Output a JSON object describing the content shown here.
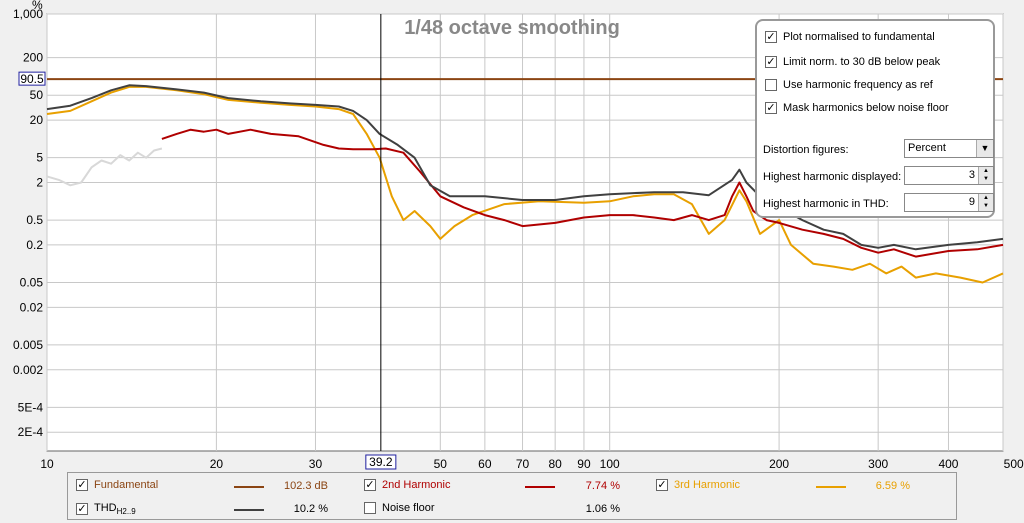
{
  "chart_data": {
    "type": "line",
    "title": "1/48 octave smoothing",
    "ylabel": "%",
    "xlabel": "Hz",
    "xscale": "log",
    "yscale": "log",
    "xlim": [
      10,
      500
    ],
    "ylim": [
      0.0001,
      1000
    ],
    "x_ticks": [
      10,
      20,
      30,
      50,
      60,
      70,
      80,
      90,
      100,
      200,
      300,
      400,
      500
    ],
    "x_tick_labels": [
      "10",
      "20",
      "30",
      "50",
      "60",
      "70",
      "80",
      "90",
      "100",
      "200",
      "300",
      "400",
      "500Hz"
    ],
    "y_ticks": [
      1000,
      200,
      50,
      20,
      5,
      2,
      0.5,
      0.2,
      0.05,
      0.02,
      0.005,
      0.002,
      0.0005,
      0.0002
    ],
    "y_tick_labels": [
      "1,000",
      "200",
      "50",
      "20",
      "5",
      "2",
      "0.5",
      "0.2",
      "0.05",
      "0.02",
      "0.005",
      "0.002",
      "5E-4",
      "2E-4"
    ],
    "cursor": {
      "x": 39.2,
      "x_label": "39.2",
      "y_label": "90.5"
    },
    "series": [
      {
        "name": "Fundamental",
        "color": "#8b4513",
        "legend_value": "102.3 dB",
        "points": [
          [
            10,
            90.5
          ],
          [
            500,
            90.5
          ]
        ]
      },
      {
        "name": "THD",
        "color": "#404040",
        "legend_value": "10.2 %",
        "points": [
          [
            10,
            30
          ],
          [
            11,
            34
          ],
          [
            12,
            45
          ],
          [
            13,
            60
          ],
          [
            14,
            72
          ],
          [
            15,
            70
          ],
          [
            17,
            62
          ],
          [
            19,
            55
          ],
          [
            21,
            45
          ],
          [
            24,
            40
          ],
          [
            27,
            37
          ],
          [
            30,
            35
          ],
          [
            33,
            33
          ],
          [
            35,
            28
          ],
          [
            37,
            20
          ],
          [
            39,
            12
          ],
          [
            42,
            8
          ],
          [
            45,
            5
          ],
          [
            48,
            1.8
          ],
          [
            52,
            1.2
          ],
          [
            60,
            1.2
          ],
          [
            70,
            1.05
          ],
          [
            80,
            1.05
          ],
          [
            90,
            1.2
          ],
          [
            100,
            1.3
          ],
          [
            120,
            1.4
          ],
          [
            135,
            1.4
          ],
          [
            150,
            1.25
          ],
          [
            165,
            2.2
          ],
          [
            170,
            3.2
          ],
          [
            175,
            2.0
          ],
          [
            185,
            1.2
          ],
          [
            200,
            0.8
          ],
          [
            220,
            0.5
          ],
          [
            240,
            0.35
          ],
          [
            260,
            0.3
          ],
          [
            280,
            0.2
          ],
          [
            300,
            0.18
          ],
          [
            320,
            0.2
          ],
          [
            350,
            0.17
          ],
          [
            400,
            0.2
          ],
          [
            450,
            0.22
          ],
          [
            500,
            0.25
          ]
        ]
      },
      {
        "name": "2nd Harmonic",
        "color": "#b00000",
        "legend_value": "7.74 %",
        "points": [
          [
            16,
            10
          ],
          [
            17,
            12
          ],
          [
            18,
            14
          ],
          [
            19,
            13
          ],
          [
            20,
            14
          ],
          [
            21,
            12
          ],
          [
            23,
            14
          ],
          [
            25,
            12
          ],
          [
            28,
            11
          ],
          [
            31,
            8
          ],
          [
            33,
            7
          ],
          [
            35,
            6.8
          ],
          [
            38,
            6.8
          ],
          [
            40,
            7
          ],
          [
            43,
            6
          ],
          [
            46,
            3
          ],
          [
            50,
            1.2
          ],
          [
            55,
            0.8
          ],
          [
            60,
            0.6
          ],
          [
            65,
            0.5
          ],
          [
            70,
            0.4
          ],
          [
            80,
            0.45
          ],
          [
            90,
            0.55
          ],
          [
            100,
            0.6
          ],
          [
            110,
            0.6
          ],
          [
            120,
            0.55
          ],
          [
            130,
            0.5
          ],
          [
            140,
            0.6
          ],
          [
            150,
            0.5
          ],
          [
            160,
            0.6
          ],
          [
            165,
            1.2
          ],
          [
            170,
            2.0
          ],
          [
            175,
            1.2
          ],
          [
            180,
            0.7
          ],
          [
            190,
            0.5
          ],
          [
            200,
            0.45
          ],
          [
            220,
            0.35
          ],
          [
            240,
            0.3
          ],
          [
            260,
            0.25
          ],
          [
            280,
            0.18
          ],
          [
            300,
            0.15
          ],
          [
            320,
            0.17
          ],
          [
            350,
            0.13
          ],
          [
            400,
            0.16
          ],
          [
            450,
            0.17
          ],
          [
            500,
            0.2
          ]
        ]
      },
      {
        "name": "3rd Harmonic",
        "color": "#e8a000",
        "legend_value": "6.59 %",
        "points": [
          [
            10,
            25
          ],
          [
            11,
            28
          ],
          [
            12,
            40
          ],
          [
            13,
            55
          ],
          [
            14,
            68
          ],
          [
            15,
            68
          ],
          [
            17,
            60
          ],
          [
            19,
            52
          ],
          [
            21,
            42
          ],
          [
            24,
            38
          ],
          [
            27,
            35
          ],
          [
            30,
            33
          ],
          [
            33,
            30
          ],
          [
            35,
            25
          ],
          [
            37,
            12
          ],
          [
            39,
            5
          ],
          [
            41,
            1.2
          ],
          [
            43,
            0.5
          ],
          [
            45,
            0.7
          ],
          [
            48,
            0.4
          ],
          [
            50,
            0.25
          ],
          [
            53,
            0.4
          ],
          [
            57,
            0.6
          ],
          [
            65,
            0.9
          ],
          [
            75,
            1.0
          ],
          [
            90,
            0.95
          ],
          [
            100,
            1.0
          ],
          [
            110,
            1.2
          ],
          [
            120,
            1.3
          ],
          [
            130,
            1.3
          ],
          [
            140,
            0.9
          ],
          [
            150,
            0.3
          ],
          [
            160,
            0.5
          ],
          [
            170,
            1.5
          ],
          [
            175,
            1.0
          ],
          [
            185,
            0.3
          ],
          [
            200,
            0.5
          ],
          [
            210,
            0.2
          ],
          [
            230,
            0.1
          ],
          [
            250,
            0.09
          ],
          [
            270,
            0.08
          ],
          [
            290,
            0.1
          ],
          [
            310,
            0.07
          ],
          [
            330,
            0.09
          ],
          [
            350,
            0.06
          ],
          [
            380,
            0.07
          ],
          [
            420,
            0.06
          ],
          [
            460,
            0.05
          ],
          [
            500,
            0.07
          ]
        ]
      },
      {
        "name": "Noise floor",
        "color": "#d8d8d8",
        "legend_value": "1.06 %",
        "points": [
          [
            10,
            2.5
          ],
          [
            10.5,
            2.2
          ],
          [
            11,
            1.8
          ],
          [
            11.5,
            2.0
          ],
          [
            12,
            3.5
          ],
          [
            12.5,
            4.5
          ],
          [
            13,
            4.0
          ],
          [
            13.5,
            5.5
          ],
          [
            14,
            4.5
          ],
          [
            14.5,
            6.0
          ],
          [
            15,
            5.0
          ],
          [
            15.5,
            6.5
          ],
          [
            16,
            7.0
          ]
        ]
      }
    ],
    "legend": {
      "fundamental": {
        "label": "Fundamental",
        "value": "102.3 dB",
        "checked": true
      },
      "h2": {
        "label": "2nd Harmonic",
        "value": "7.74 %",
        "checked": true
      },
      "h3": {
        "label": "3rd Harmonic",
        "value": "6.59 %",
        "checked": true
      },
      "thd": {
        "label": "THD",
        "sub": "H2..9",
        "value": "10.2 %",
        "checked": true
      },
      "noise": {
        "label": "Noise floor",
        "value": "1.06 %",
        "checked": false
      }
    }
  },
  "panel": {
    "options": [
      {
        "label": "Plot normalised to fundamental",
        "checked": true
      },
      {
        "label": "Limit norm. to 30 dB below peak",
        "checked": true
      },
      {
        "label": "Use harmonic frequency as ref",
        "checked": false
      },
      {
        "label": "Mask harmonics below noise floor",
        "checked": true
      }
    ],
    "distortion_label": "Distortion figures:",
    "distortion_value": "Percent",
    "highest_displayed_label": "Highest harmonic displayed:",
    "highest_displayed_value": "3",
    "highest_thd_label": "Highest harmonic in THD:",
    "highest_thd_value": "9"
  }
}
